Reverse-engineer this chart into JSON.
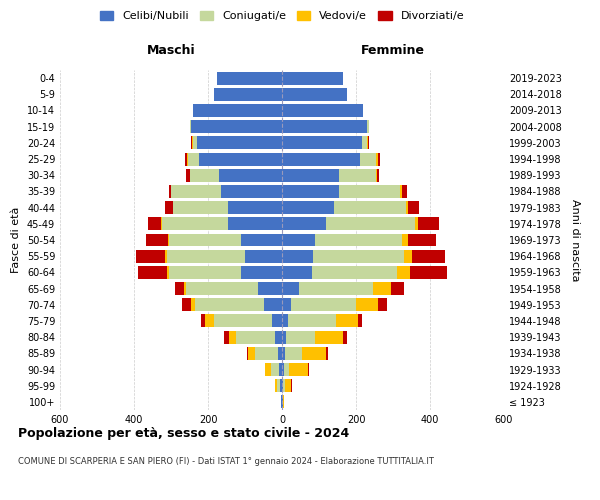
{
  "age_groups": [
    "100+",
    "95-99",
    "90-94",
    "85-89",
    "80-84",
    "75-79",
    "70-74",
    "65-69",
    "60-64",
    "55-59",
    "50-54",
    "45-49",
    "40-44",
    "35-39",
    "30-34",
    "25-29",
    "20-24",
    "15-19",
    "10-14",
    "5-9",
    "0-4"
  ],
  "birth_years": [
    "≤ 1923",
    "1924-1928",
    "1929-1933",
    "1934-1938",
    "1939-1943",
    "1944-1948",
    "1949-1953",
    "1954-1958",
    "1959-1963",
    "1964-1968",
    "1969-1973",
    "1974-1978",
    "1979-1983",
    "1984-1988",
    "1989-1993",
    "1994-1998",
    "1999-2003",
    "2004-2008",
    "2009-2013",
    "2014-2018",
    "2019-2023"
  ],
  "male": {
    "celibi": [
      2,
      5,
      8,
      12,
      18,
      28,
      50,
      65,
      110,
      100,
      110,
      145,
      145,
      165,
      170,
      225,
      230,
      245,
      240,
      185,
      175
    ],
    "coniugati": [
      2,
      8,
      22,
      60,
      105,
      155,
      185,
      195,
      195,
      210,
      195,
      180,
      150,
      135,
      80,
      30,
      10,
      5,
      0,
      0,
      0
    ],
    "vedovi": [
      0,
      5,
      15,
      20,
      20,
      25,
      10,
      5,
      5,
      5,
      3,
      2,
      0,
      0,
      0,
      3,
      3,
      0,
      0,
      0,
      0
    ],
    "divorziati": [
      0,
      2,
      2,
      3,
      15,
      10,
      25,
      25,
      80,
      80,
      60,
      35,
      20,
      5,
      10,
      5,
      3,
      0,
      0,
      0,
      0
    ]
  },
  "female": {
    "celibi": [
      2,
      3,
      5,
      8,
      10,
      15,
      25,
      45,
      80,
      85,
      90,
      120,
      140,
      155,
      155,
      210,
      215,
      230,
      220,
      175,
      165
    ],
    "coniugati": [
      0,
      5,
      15,
      45,
      80,
      130,
      175,
      200,
      230,
      245,
      235,
      240,
      195,
      165,
      100,
      45,
      15,
      5,
      0,
      0,
      0
    ],
    "vedovi": [
      3,
      15,
      50,
      65,
      75,
      60,
      60,
      50,
      35,
      20,
      15,
      8,
      5,
      3,
      3,
      5,
      2,
      0,
      0,
      0,
      0
    ],
    "divorziati": [
      0,
      3,
      3,
      5,
      10,
      10,
      25,
      35,
      100,
      90,
      75,
      55,
      30,
      15,
      5,
      5,
      3,
      0,
      0,
      0,
      0
    ]
  },
  "colors": {
    "celibi": "#4472c4",
    "coniugati": "#c5d89d",
    "vedovi": "#ffc000",
    "divorziati": "#c00000"
  },
  "legend_labels": [
    "Celibi/Nubili",
    "Coniugati/e",
    "Vedovi/e",
    "Divorziati/e"
  ],
  "title": "Popolazione per età, sesso e stato civile - 2024",
  "subtitle": "COMUNE DI SCARPERIA E SAN PIERO (FI) - Dati ISTAT 1° gennaio 2024 - Elaborazione TUTTITALIA.IT",
  "xlabel_left": "Maschi",
  "xlabel_right": "Femmine",
  "ylabel_left": "Fasce di età",
  "ylabel_right": "Anni di nascita",
  "xlim": 600,
  "bg_color": "#ffffff",
  "grid_color": "#cccccc"
}
